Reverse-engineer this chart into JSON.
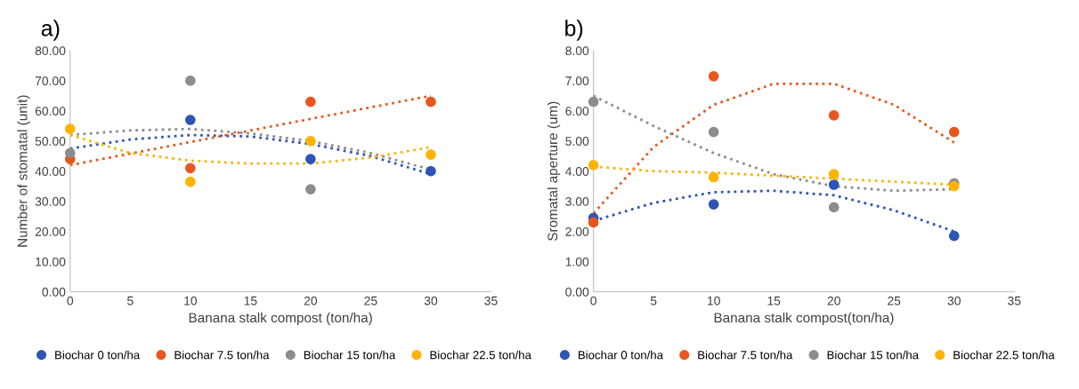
{
  "chart_data": [
    {
      "type": "scatter",
      "title": "a)",
      "xlabel": "Banana stalk compost (ton/ha)",
      "ylabel": "Number of stomatal (unit)",
      "marker": "circle",
      "legend": "bottom",
      "grid": false,
      "xlim": [
        0,
        35
      ],
      "xticks": [
        0,
        5,
        10,
        15,
        20,
        25,
        30,
        35
      ],
      "ylim": [
        0,
        80
      ],
      "yticks": [
        {
          "value": 0,
          "label": "0.00"
        },
        {
          "value": 10,
          "label": "10.00"
        },
        {
          "value": 20,
          "label": "20.00"
        },
        {
          "value": 30,
          "label": "30.00"
        },
        {
          "value": 40,
          "label": "40.00"
        },
        {
          "value": 50,
          "label": "50.00"
        },
        {
          "value": 60,
          "label": "60.00"
        },
        {
          "value": 70,
          "label": "70.00"
        },
        {
          "value": 80,
          "label": "80.00"
        }
      ],
      "series": [
        {
          "type": "line",
          "line_style": "dotted",
          "marker": "none",
          "color": "#2e54b5",
          "x": [
            0,
            5,
            10,
            15,
            20,
            25,
            30
          ],
          "values": [
            47.5,
            50.5,
            52,
            51.5,
            49,
            45,
            39
          ]
        },
        {
          "type": "line",
          "line_style": "dotted",
          "marker": "none",
          "color": "#e8561f",
          "x": [
            0,
            30
          ],
          "values": [
            42,
            65
          ]
        },
        {
          "type": "line",
          "line_style": "dotted",
          "marker": "none",
          "color": "#8c8c8c",
          "x": [
            0,
            5,
            10,
            15,
            20,
            25,
            30
          ],
          "values": [
            52,
            53.5,
            54,
            52.5,
            50,
            46,
            40.5
          ]
        },
        {
          "type": "line",
          "line_style": "dotted",
          "marker": "none",
          "color": "#fdb300",
          "x": [
            0,
            5,
            10,
            15,
            20,
            25,
            30
          ],
          "values": [
            52,
            46,
            43.5,
            42.5,
            42.5,
            44.5,
            48
          ]
        },
        {
          "name": "Biochar 0 ton/ha",
          "color": "#2e54b5",
          "x": [
            10,
            20,
            30
          ],
          "values": [
            57,
            44,
            40
          ]
        },
        {
          "name": "Biochar 7.5 ton/ha",
          "color": "#e8561f",
          "x": [
            0,
            10,
            20,
            30
          ],
          "values": [
            44,
            41,
            63,
            63
          ]
        },
        {
          "name": "Biochar 15 ton/ha",
          "color": "#8c8c8c",
          "x": [
            0,
            10,
            20
          ],
          "values": [
            46,
            70,
            34
          ]
        },
        {
          "name": "Biochar 22.5 ton/ha",
          "color": "#fdb300",
          "x": [
            0,
            10,
            20,
            30
          ],
          "values": [
            54,
            36.5,
            50,
            45.5
          ]
        }
      ]
    },
    {
      "type": "scatter",
      "title": "b)",
      "xlabel": "Banana stalk compost(ton/ha)",
      "ylabel": "Sromatal aperture (um)",
      "marker": "circle",
      "legend": "bottom",
      "grid": false,
      "xlim": [
        0,
        35
      ],
      "xticks": [
        0,
        5,
        10,
        15,
        20,
        25,
        30,
        35
      ],
      "ylim": [
        0,
        8
      ],
      "yticks": [
        {
          "value": 0,
          "label": "0.00"
        },
        {
          "value": 1,
          "label": "1.00"
        },
        {
          "value": 2,
          "label": "2.00"
        },
        {
          "value": 3,
          "label": "3.00"
        },
        {
          "value": 4,
          "label": "4.00"
        },
        {
          "value": 5,
          "label": "5.00"
        },
        {
          "value": 6,
          "label": "6.00"
        },
        {
          "value": 7,
          "label": "7.00"
        },
        {
          "value": 8,
          "label": "8.00"
        }
      ],
      "series": [
        {
          "type": "line",
          "line_style": "dotted",
          "marker": "none",
          "color": "#2e54b5",
          "x": [
            0,
            5,
            10,
            15,
            20,
            25,
            30
          ],
          "values": [
            2.35,
            2.95,
            3.3,
            3.35,
            3.2,
            2.7,
            2.0
          ]
        },
        {
          "type": "line",
          "line_style": "dotted",
          "marker": "none",
          "color": "#e8561f",
          "x": [
            0,
            5,
            10,
            15,
            20,
            25,
            30
          ],
          "values": [
            2.6,
            4.8,
            6.2,
            6.9,
            6.9,
            6.2,
            4.95
          ]
        },
        {
          "type": "line",
          "line_style": "dotted",
          "marker": "none",
          "color": "#8c8c8c",
          "x": [
            0,
            5,
            10,
            15,
            20,
            25,
            30
          ],
          "values": [
            6.5,
            5.5,
            4.6,
            3.9,
            3.5,
            3.35,
            3.4
          ]
        },
        {
          "type": "line",
          "line_style": "dotted",
          "marker": "none",
          "color": "#fdb300",
          "x": [
            0,
            5,
            10,
            15,
            20,
            25,
            30
          ],
          "values": [
            4.15,
            4.0,
            3.95,
            3.85,
            3.75,
            3.65,
            3.55
          ]
        },
        {
          "name": "Biochar 0 ton/ha",
          "color": "#2e54b5",
          "x": [
            0,
            10,
            20,
            30
          ],
          "values": [
            2.45,
            2.9,
            3.55,
            1.85
          ]
        },
        {
          "name": "Biochar 7.5 ton/ha",
          "color": "#e8561f",
          "x": [
            0,
            10,
            20,
            30
          ],
          "values": [
            2.3,
            7.15,
            5.85,
            5.3
          ]
        },
        {
          "name": "Biochar 15 ton/ha",
          "color": "#8c8c8c",
          "x": [
            0,
            10,
            20,
            30
          ],
          "values": [
            6.3,
            5.3,
            2.8,
            3.6
          ]
        },
        {
          "name": "Biochar 22.5 ton/ha",
          "color": "#fdb300",
          "x": [
            0,
            10,
            20,
            30
          ],
          "values": [
            4.2,
            3.8,
            3.9,
            3.5
          ]
        }
      ]
    }
  ]
}
